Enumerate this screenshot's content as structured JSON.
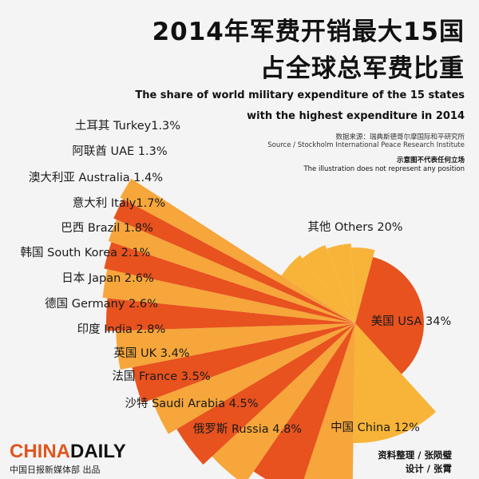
{
  "title_zh_line1": "2014年军费开销最大15国",
  "title_zh_line2": "占全球总军费比重",
  "title_en_line1": "The share of world military expenditure of the 15 states",
  "title_en_line2": "with the highest expenditure in 2014",
  "source_zh": "数据来源：瑞典斯德哥尔摩国际和平研究所",
  "source_en": "Source / Stockholm International Peace Research Institute",
  "disclaimer_zh": "示意图不代表任何立场",
  "disclaimer_en": "The illustration does not represent any position",
  "logo": {
    "part1": "CHINA",
    "part2": "DAILY"
  },
  "publisher": "中国日报新媒体部 出品",
  "credit_data": "资料整理 / 张陨璧",
  "credit_design": "设计 / 张霄",
  "colors": {
    "orange_dark": "#e8521e",
    "orange_light": "#f6a63a",
    "yellow": "#f7b438"
  },
  "chart_data": {
    "type": "pie",
    "categories": [
      "美国 USA",
      "中国 China",
      "俄罗斯 Russia",
      "沙特 Saudi Arabia",
      "法国 France",
      "英国 UK",
      "印度 India",
      "德国 Germany",
      "日本 Japan",
      "韩国 South Korea",
      "巴西 Brazil",
      "意大利 Italy",
      "澳大利亚 Australia",
      "阿联酋 UAE",
      "土耳其 Turkey",
      "其他 Others"
    ],
    "values": [
      34,
      12,
      4.8,
      4.5,
      3.5,
      3.4,
      2.8,
      2.6,
      2.6,
      2.1,
      1.8,
      1.7,
      1.4,
      1.3,
      1.3,
      20
    ],
    "labels": [
      "美国 USA 34%",
      "中国 China 12%",
      "俄罗斯 Russia 4.8%",
      "沙特 Saudi Arabia 4.5%",
      "法国 France 3.5%",
      "英国 UK 3.4%",
      "印度 India 2.8%",
      "德国 Germany 2.6%",
      "日本 Japan 2.6%",
      "韩国 South Korea 2.1%",
      "巴西 Brazil 1.8%",
      "意大利 Italy1.7%",
      "澳大利亚 Australia 1.4%",
      "阿联酋 UAE 1.3%",
      "土耳其 Turkey1.3%",
      "其他 Others 20%"
    ],
    "unit": "%"
  }
}
